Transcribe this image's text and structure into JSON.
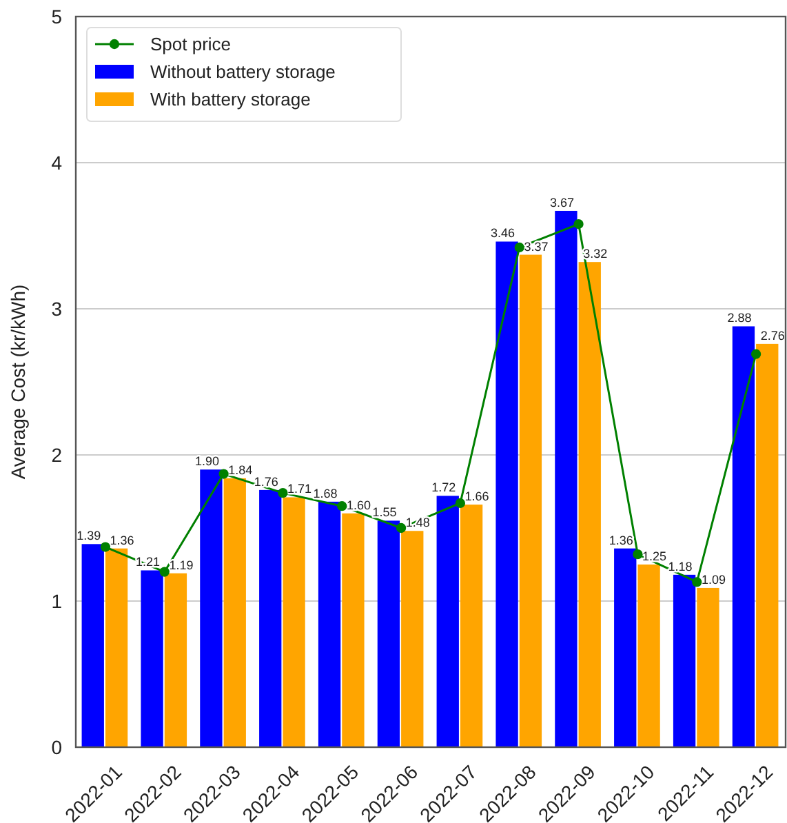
{
  "chart_data": {
    "type": "bar",
    "ylabel": "Average Cost (kr/kWh)",
    "categories": [
      "2022-01",
      "2022-02",
      "2022-03",
      "2022-04",
      "2022-05",
      "2022-06",
      "2022-07",
      "2022-08",
      "2022-09",
      "2022-10",
      "2022-11",
      "2022-12"
    ],
    "series": [
      {
        "name": "Spot price",
        "type": "line",
        "color": "#008000",
        "marker": "circle",
        "values": [
          1.37,
          1.2,
          1.87,
          1.74,
          1.65,
          1.5,
          1.67,
          3.42,
          3.58,
          1.32,
          1.13,
          2.69
        ]
      },
      {
        "name": "Without battery storage",
        "color": "#0000ff",
        "values": [
          1.39,
          1.21,
          1.9,
          1.76,
          1.68,
          1.55,
          1.72,
          3.46,
          3.67,
          1.36,
          1.18,
          2.88
        ],
        "value_labels": [
          "1.39",
          "1.21",
          "1.90",
          "1.76",
          "1.68",
          "1.55",
          "1.72",
          "3.46",
          "3.67",
          "1.36",
          "1.18",
          "2.88"
        ]
      },
      {
        "name": "With battery storage",
        "color": "#ffa500",
        "values": [
          1.36,
          1.19,
          1.84,
          1.71,
          1.6,
          1.48,
          1.66,
          3.37,
          3.32,
          1.25,
          1.09,
          2.76
        ],
        "value_labels": [
          "1.36",
          "1.19",
          "1.84",
          "1.71",
          "1.60",
          "1.48",
          "1.66",
          "3.37",
          "3.32",
          "1.25",
          "1.09",
          "2.76"
        ]
      }
    ],
    "ylim": [
      0,
      5
    ],
    "yticks": [
      0,
      1,
      2,
      3,
      4,
      5
    ],
    "grid": "y",
    "legend": "top left"
  }
}
